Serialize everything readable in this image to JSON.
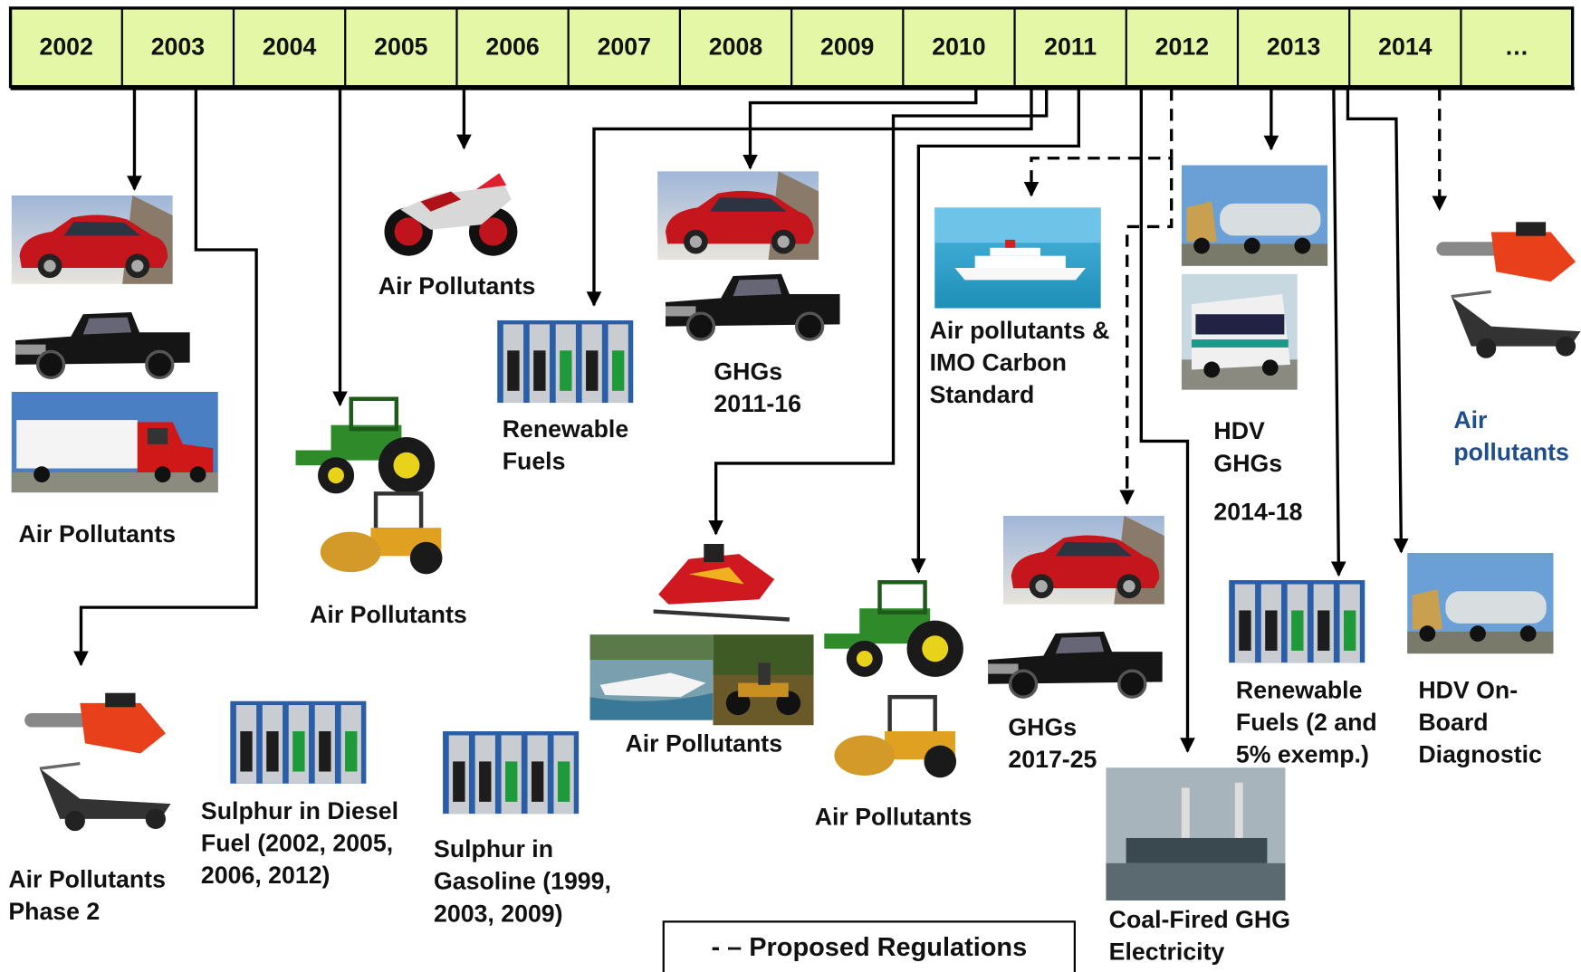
{
  "timeline": {
    "years": [
      "2002",
      "2003",
      "2004",
      "2005",
      "2006",
      "2007",
      "2008",
      "2009",
      "2010",
      "2011",
      "2012",
      "2013",
      "2014",
      "…"
    ]
  },
  "items": [
    {
      "label": [
        "Air Pollutants"
      ]
    },
    {
      "label": [
        "Air Pollutants",
        "Phase 2"
      ]
    },
    {
      "label": [
        "Sulphur in Diesel",
        "Fuel (2002, 2005,",
        "2006, 2012)"
      ]
    },
    {
      "label": [
        "Air Pollutants"
      ]
    },
    {
      "label": [
        "Sulphur in",
        "Gasoline (1999,",
        "2003, 2009)"
      ]
    },
    {
      "label": [
        "Air Pollutants"
      ]
    },
    {
      "label": [
        "Renewable",
        "Fuels"
      ]
    },
    {
      "label": [
        "GHGs",
        "2011-16"
      ]
    },
    {
      "label": [
        "Air Pollutants"
      ]
    },
    {
      "label": [
        "Air Pollutants"
      ]
    },
    {
      "label": [
        "Air pollutants &",
        "IMO Carbon",
        "Standard"
      ]
    },
    {
      "label": [
        "GHGs",
        "2017-25"
      ]
    },
    {
      "label": [
        "Coal-Fired GHG",
        "Electricity"
      ]
    },
    {
      "label": [
        "HDV",
        "GHGs",
        "2014-18"
      ]
    },
    {
      "label": [
        "Renewable",
        "Fuels (2 and",
        "5% exemp.)"
      ]
    },
    {
      "label": [
        "HDV On-",
        "Board",
        "Diagnostic"
      ]
    },
    {
      "label": [
        "Air",
        "pollutants"
      ]
    }
  ],
  "legend": "- – Proposed Regulations"
}
